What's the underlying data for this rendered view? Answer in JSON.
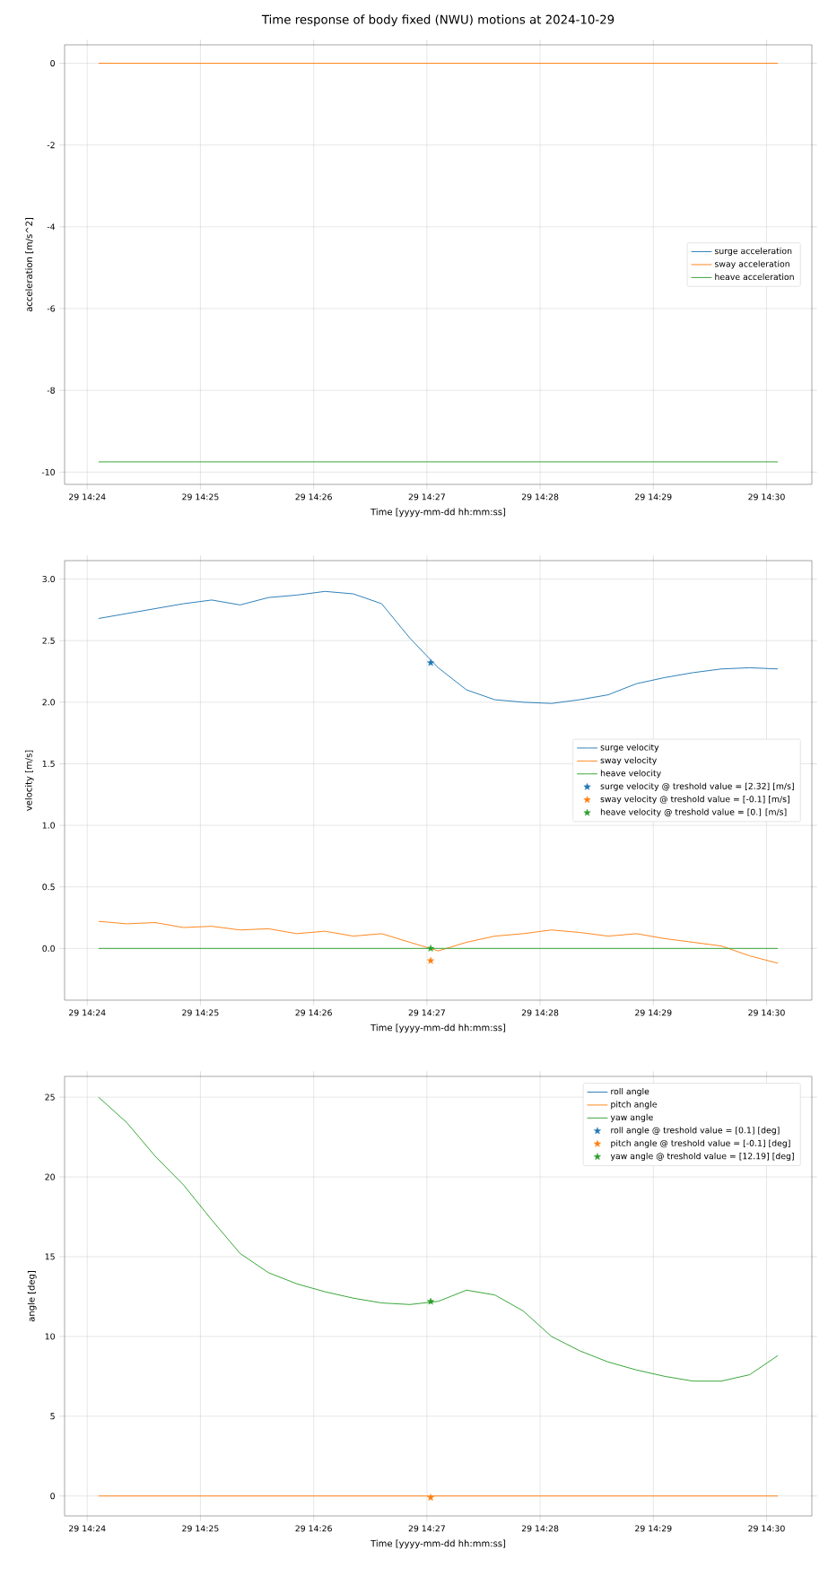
{
  "chart_data": [
    {
      "type": "line",
      "title": "Time response of body fixed (NWU) motions at 2024-10-29",
      "xlabel": "Time [yyyy-mm-dd hh:mm:ss]",
      "ylabel": "acceleration [m/s^2]",
      "x": [
        "2024-10-29T14:24:06",
        "2024-10-29T14:30:06"
      ],
      "xlim": [
        "2024-10-29T14:23:48",
        "2024-10-29T14:30:24"
      ],
      "xticks": [
        {
          "value": "2024-10-29T14:24",
          "label": "29 14:24"
        },
        {
          "value": "2024-10-29T14:25",
          "label": "29 14:25"
        },
        {
          "value": "2024-10-29T14:26",
          "label": "29 14:26"
        },
        {
          "value": "2024-10-29T14:27",
          "label": "29 14:27"
        },
        {
          "value": "2024-10-29T14:28",
          "label": "29 14:28"
        },
        {
          "value": "2024-10-29T14:29",
          "label": "29 14:29"
        },
        {
          "value": "2024-10-29T14:30",
          "label": "29 14:30"
        }
      ],
      "ylim": [
        -10.3,
        0.45
      ],
      "yticks": [
        0,
        -2,
        -4,
        -6,
        -8,
        -10
      ],
      "grid": true,
      "legend": "right",
      "series": [
        {
          "name": "surge acceleration",
          "color": "#1f77b4",
          "values": [
            null,
            null
          ]
        },
        {
          "name": "sway acceleration",
          "color": "#ff7f0e",
          "values": [
            0,
            0
          ]
        },
        {
          "name": "heave acceleration",
          "color": "#2ca02c",
          "values": [
            -9.75,
            -9.75
          ]
        }
      ]
    },
    {
      "type": "line",
      "xlabel": "Time [yyyy-mm-dd hh:mm:ss]",
      "ylabel": "velocity [m/s]",
      "x": [
        "2024-10-29T14:24:06",
        "2024-10-29T14:24:21",
        "2024-10-29T14:24:36",
        "2024-10-29T14:24:51",
        "2024-10-29T14:25:06",
        "2024-10-29T14:25:21",
        "2024-10-29T14:25:36",
        "2024-10-29T14:25:51",
        "2024-10-29T14:26:06",
        "2024-10-29T14:26:21",
        "2024-10-29T14:26:36",
        "2024-10-29T14:26:51",
        "2024-10-29T14:27:06",
        "2024-10-29T14:27:21",
        "2024-10-29T14:27:36",
        "2024-10-29T14:27:51",
        "2024-10-29T14:28:06",
        "2024-10-29T14:28:21",
        "2024-10-29T14:28:36",
        "2024-10-29T14:28:51",
        "2024-10-29T14:29:06",
        "2024-10-29T14:29:21",
        "2024-10-29T14:29:36",
        "2024-10-29T14:29:51",
        "2024-10-29T14:30:06"
      ],
      "xlim": [
        "2024-10-29T14:23:48",
        "2024-10-29T14:30:24"
      ],
      "xticks": [
        {
          "value": "2024-10-29T14:24",
          "label": "29 14:24"
        },
        {
          "value": "2024-10-29T14:25",
          "label": "29 14:25"
        },
        {
          "value": "2024-10-29T14:26",
          "label": "29 14:26"
        },
        {
          "value": "2024-10-29T14:27",
          "label": "29 14:27"
        },
        {
          "value": "2024-10-29T14:28",
          "label": "29 14:28"
        },
        {
          "value": "2024-10-29T14:29",
          "label": "29 14:29"
        },
        {
          "value": "2024-10-29T14:30",
          "label": "29 14:30"
        }
      ],
      "ylim": [
        -0.42,
        3.15
      ],
      "yticks": [
        {
          "value": 0,
          "label": "0.0"
        },
        {
          "value": 0.5,
          "label": "0.5"
        },
        {
          "value": 1,
          "label": "1.0"
        },
        {
          "value": 1.5,
          "label": "1.5"
        },
        {
          "value": 2,
          "label": "2.0"
        },
        {
          "value": 2.5,
          "label": "2.5"
        },
        {
          "value": 3,
          "label": "3.0"
        }
      ],
      "grid": true,
      "legend": "right",
      "series": [
        {
          "name": "surge velocity",
          "color": "#1f77b4",
          "values": [
            2.68,
            2.72,
            2.76,
            2.8,
            2.83,
            2.79,
            2.85,
            2.87,
            2.9,
            2.88,
            2.8,
            2.52,
            2.28,
            2.1,
            2.02,
            2.0,
            1.99,
            2.02,
            2.06,
            2.15,
            2.2,
            2.24,
            2.27,
            2.28,
            2.27
          ]
        },
        {
          "name": "sway velocity",
          "color": "#ff7f0e",
          "values": [
            0.22,
            0.2,
            0.21,
            0.17,
            0.18,
            0.15,
            0.16,
            0.12,
            0.14,
            0.1,
            0.12,
            0.05,
            -0.02,
            0.05,
            0.1,
            0.12,
            0.15,
            0.13,
            0.1,
            0.12,
            0.08,
            0.05,
            0.02,
            -0.06,
            -0.12
          ]
        },
        {
          "name": "heave velocity",
          "color": "#2ca02c",
          "values": [
            0,
            0,
            0,
            0,
            0,
            0,
            0,
            0,
            0,
            0,
            0,
            0,
            0,
            0,
            0,
            0,
            0,
            0,
            0,
            0,
            0,
            0,
            0,
            0,
            0
          ]
        },
        {
          "type": "scatter",
          "marker": "star",
          "name": "surge velocity @ treshold value = [2.32] [m/s]",
          "color": "#1f77b4",
          "x": [
            "2024-10-29T14:27:02"
          ],
          "values": [
            2.32
          ]
        },
        {
          "type": "scatter",
          "marker": "star",
          "name": "sway velocity @ treshold value = [-0.1] [m/s]",
          "color": "#ff7f0e",
          "x": [
            "2024-10-29T14:27:02"
          ],
          "values": [
            -0.1
          ]
        },
        {
          "type": "scatter",
          "marker": "star",
          "name": "heave velocity @ treshold value = [0.] [m/s]",
          "color": "#2ca02c",
          "x": [
            "2024-10-29T14:27:02"
          ],
          "values": [
            0
          ]
        }
      ]
    },
    {
      "type": "line",
      "xlabel": "Time [yyyy-mm-dd hh:mm:ss]",
      "ylabel": "angle [deg]",
      "x": [
        "2024-10-29T14:24:06",
        "2024-10-29T14:24:21",
        "2024-10-29T14:24:36",
        "2024-10-29T14:24:51",
        "2024-10-29T14:25:06",
        "2024-10-29T14:25:21",
        "2024-10-29T14:25:36",
        "2024-10-29T14:25:51",
        "2024-10-29T14:26:06",
        "2024-10-29T14:26:21",
        "2024-10-29T14:26:36",
        "2024-10-29T14:26:51",
        "2024-10-29T14:27:06",
        "2024-10-29T14:27:21",
        "2024-10-29T14:27:36",
        "2024-10-29T14:27:51",
        "2024-10-29T14:28:06",
        "2024-10-29T14:28:21",
        "2024-10-29T14:28:36",
        "2024-10-29T14:28:51",
        "2024-10-29T14:29:06",
        "2024-10-29T14:29:21",
        "2024-10-29T14:29:36",
        "2024-10-29T14:29:51",
        "2024-10-29T14:30:06"
      ],
      "xlim": [
        "2024-10-29T14:23:48",
        "2024-10-29T14:30:24"
      ],
      "xticks": [
        {
          "value": "2024-10-29T14:24",
          "label": "29 14:24"
        },
        {
          "value": "2024-10-29T14:25",
          "label": "29 14:25"
        },
        {
          "value": "2024-10-29T14:26",
          "label": "29 14:26"
        },
        {
          "value": "2024-10-29T14:27",
          "label": "29 14:27"
        },
        {
          "value": "2024-10-29T14:28",
          "label": "29 14:28"
        },
        {
          "value": "2024-10-29T14:29",
          "label": "29 14:29"
        },
        {
          "value": "2024-10-29T14:30",
          "label": "29 14:30"
        }
      ],
      "ylim": [
        -1.25,
        26.3
      ],
      "yticks": [
        0,
        5,
        10,
        15,
        20,
        25
      ],
      "grid": true,
      "legend": "top right",
      "series": [
        {
          "name": "roll angle",
          "color": "#1f77b4",
          "values": [
            null,
            null,
            null,
            null,
            null,
            null,
            null,
            null,
            null,
            null,
            null,
            null,
            null,
            null,
            null,
            null,
            null,
            null,
            null,
            null,
            null,
            null,
            null,
            null,
            null
          ]
        },
        {
          "name": "pitch angle",
          "color": "#ff7f0e",
          "values": [
            0,
            0,
            0,
            0,
            0,
            0,
            0,
            0,
            0,
            0,
            0,
            0,
            0,
            0,
            0,
            0,
            0,
            0,
            0,
            0,
            0,
            0,
            0,
            0,
            0
          ]
        },
        {
          "name": "yaw angle",
          "color": "#2ca02c",
          "values": [
            25.0,
            23.4,
            21.3,
            19.5,
            17.3,
            15.2,
            14.0,
            13.3,
            12.8,
            12.4,
            12.1,
            12.0,
            12.2,
            12.9,
            12.6,
            11.6,
            10.0,
            9.1,
            8.4,
            7.9,
            7.5,
            7.2,
            7.2,
            7.6,
            8.8
          ]
        },
        {
          "type": "scatter",
          "marker": "star",
          "name": "roll angle @ treshold value = [0.1] [deg]",
          "color": "#1f77b4",
          "x": [
            null
          ],
          "values": [
            null
          ]
        },
        {
          "type": "scatter",
          "marker": "star",
          "name": "pitch angle @ treshold value = [-0.1] [deg]",
          "color": "#ff7f0e",
          "x": [
            "2024-10-29T14:27:02"
          ],
          "values": [
            -0.1
          ]
        },
        {
          "type": "scatter",
          "marker": "star",
          "name": "yaw angle @ treshold value = [12.19] [deg]",
          "color": "#2ca02c",
          "x": [
            "2024-10-29T14:27:02"
          ],
          "values": [
            12.19
          ]
        }
      ]
    }
  ]
}
